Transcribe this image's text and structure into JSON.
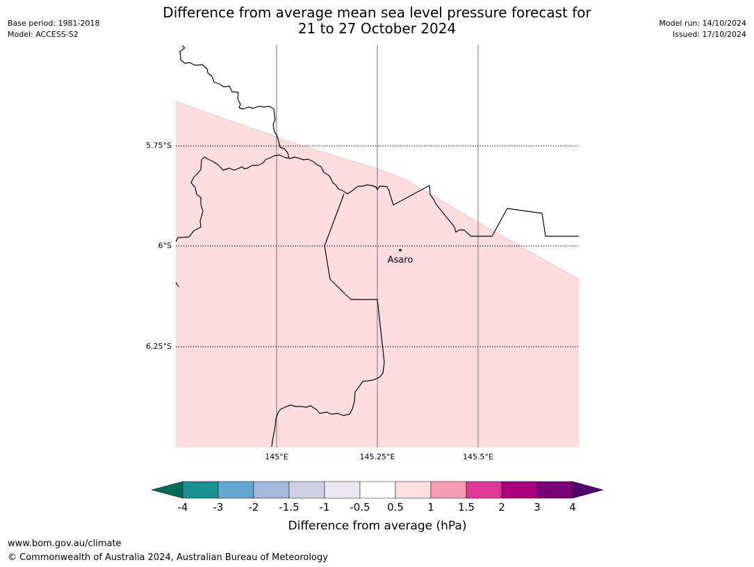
{
  "title": {
    "line1": "Difference from average mean sea level pressure forecast for",
    "line2": "21 to 27 October 2024"
  },
  "meta_left": {
    "base_period": "Base period: 1981-2018",
    "model": "Model: ACCESS-S2"
  },
  "meta_right": {
    "model_run": "Model run: 14/10/2024",
    "issued": "Issued: 17/10/2024"
  },
  "map": {
    "lat_labels": [
      "5.75°S",
      "6°S",
      "6.25°S"
    ],
    "lon_labels": [
      "145°E",
      "145.25°E",
      "145.5°E"
    ],
    "lat_values": [
      -5.75,
      -6.0,
      -6.25
    ],
    "lon_values": [
      145.0,
      145.25,
      145.5
    ],
    "town": {
      "name": "Asaro"
    },
    "shading_bin": "0.5 to 1",
    "shading_color": "#fbdedd"
  },
  "colorbar": {
    "title": "Difference from average (hPa)",
    "tick_labels": [
      "-4",
      "-3",
      "-2",
      "-1.5",
      "-1",
      "-0.5",
      "0.5",
      "1",
      "1.5",
      "2",
      "3",
      "4"
    ],
    "colors": [
      "#1a8f91",
      "#66a7d2",
      "#a4b9dc",
      "#d0cfe6",
      "#ebe9ef",
      "#ffffff",
      "#fde0df",
      "#f79db6",
      "#de3996",
      "#a9007f",
      "#7a0078"
    ],
    "under_color": "#006b5c",
    "over_color": "#4f006c"
  },
  "footer": {
    "url": "www.bom.gov.au/climate",
    "copyright": "© Commonwealth of Australia 2024, Australian Bureau of Meteorology"
  }
}
